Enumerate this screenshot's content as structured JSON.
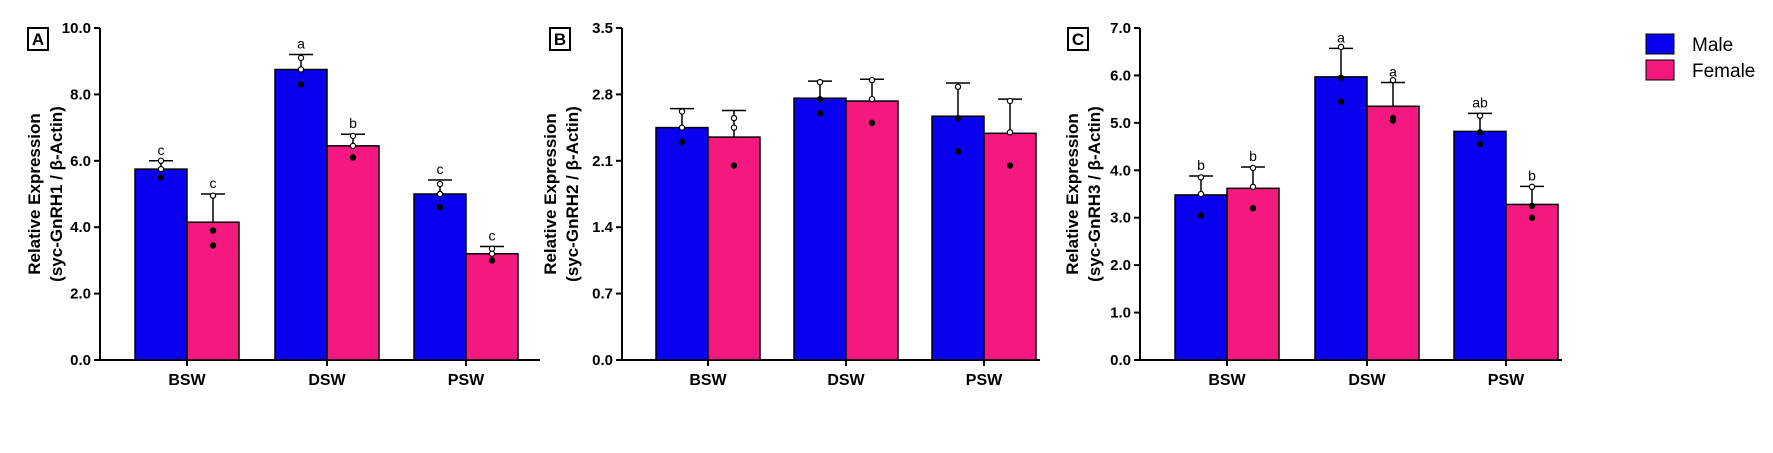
{
  "chart_data": [
    {
      "type": "bar",
      "panel": "A",
      "ylabel": [
        "Relative Expression",
        "(syc-GnRH1 / β-Actin)"
      ],
      "categories": [
        "BSW",
        "DSW",
        "PSW"
      ],
      "ylim": [
        0,
        10
      ],
      "yticks": [
        0,
        2,
        4,
        6,
        8,
        10
      ],
      "ytick_labels": [
        "0.0",
        "2.0",
        "4.0",
        "6.0",
        "8.0",
        "10.0"
      ],
      "series": [
        {
          "name": "Male",
          "values": [
            5.75,
            8.75,
            5.0
          ],
          "errors": [
            0.25,
            0.45,
            0.42
          ],
          "points": [
            [
              5.5,
              5.75,
              6.0
            ],
            [
              8.3,
              8.75,
              9.1
            ],
            [
              4.6,
              5.0,
              5.3
            ]
          ],
          "letters": [
            "c",
            "a",
            "c"
          ]
        },
        {
          "name": "Female",
          "values": [
            4.15,
            6.45,
            3.2
          ],
          "errors": [
            0.85,
            0.35,
            0.22
          ],
          "points": [
            [
              3.45,
              3.9,
              4.95
            ],
            [
              6.1,
              6.45,
              6.75
            ],
            [
              3.0,
              3.2,
              3.35
            ]
          ],
          "letters": [
            "c",
            "b",
            "c"
          ]
        }
      ]
    },
    {
      "type": "bar",
      "panel": "B",
      "ylabel": [
        "Relative Expression",
        "(syc-GnRH2 / β-Actin)"
      ],
      "categories": [
        "BSW",
        "DSW",
        "PSW"
      ],
      "ylim": [
        0,
        3.5
      ],
      "yticks": [
        0,
        0.7,
        1.4,
        2.1,
        2.8,
        3.5
      ],
      "ytick_labels": [
        "0.0",
        "0.7",
        "1.4",
        "2.1",
        "2.8",
        "3.5"
      ],
      "series": [
        {
          "name": "Male",
          "values": [
            2.45,
            2.76,
            2.57
          ],
          "errors": [
            0.2,
            0.18,
            0.35
          ],
          "points": [
            [
              2.3,
              2.45,
              2.62
            ],
            [
              2.6,
              2.75,
              2.93
            ],
            [
              2.2,
              2.55,
              2.88
            ]
          ],
          "letters": [
            "",
            "",
            ""
          ]
        },
        {
          "name": "Female",
          "values": [
            2.35,
            2.73,
            2.39
          ],
          "errors": [
            0.28,
            0.23,
            0.36
          ],
          "points": [
            [
              2.05,
              2.45,
              2.55
            ],
            [
              2.5,
              2.75,
              2.95
            ],
            [
              2.05,
              2.4,
              2.73
            ]
          ],
          "letters": [
            "",
            "",
            ""
          ]
        }
      ]
    },
    {
      "type": "bar",
      "panel": "C",
      "ylabel": [
        "Relative Expression",
        "(syc-GnRH3 / β-Actin)"
      ],
      "categories": [
        "BSW",
        "DSW",
        "PSW"
      ],
      "ylim": [
        0,
        7
      ],
      "yticks": [
        0,
        1,
        2,
        3,
        4,
        5,
        6,
        7
      ],
      "ytick_labels": [
        "0.0",
        "1.0",
        "2.0",
        "3.0",
        "4.0",
        "5.0",
        "6.0",
        "7.0"
      ],
      "series": [
        {
          "name": "Male",
          "values": [
            3.48,
            5.97,
            4.82
          ],
          "errors": [
            0.4,
            0.6,
            0.38
          ],
          "points": [
            [
              3.05,
              3.5,
              3.85
            ],
            [
              5.45,
              5.95,
              6.6
            ],
            [
              4.55,
              4.8,
              5.15
            ]
          ],
          "letters": [
            "b",
            "a",
            "ab"
          ]
        },
        {
          "name": "Female",
          "values": [
            3.62,
            5.35,
            3.28
          ],
          "errors": [
            0.45,
            0.5,
            0.38
          ],
          "points": [
            [
              3.2,
              3.65,
              4.05
            ],
            [
              5.05,
              5.1,
              5.9
            ],
            [
              3.0,
              3.25,
              3.65
            ]
          ],
          "letters": [
            "b",
            "a",
            "b"
          ]
        }
      ]
    }
  ],
  "legend": {
    "items": [
      {
        "label": "Male",
        "color": "#0a00f0"
      },
      {
        "label": "Female",
        "color": "#f5197f"
      }
    ]
  },
  "colors": {
    "male": "#0a00f0",
    "female": "#f5197f"
  }
}
